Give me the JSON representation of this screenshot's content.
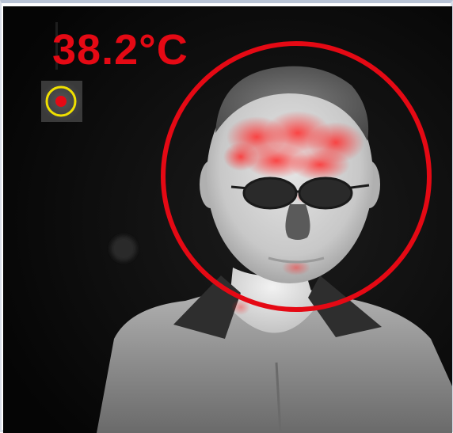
{
  "readout": {
    "temperature": "38.2°C"
  },
  "colors": {
    "alarm": "#e50914",
    "marker_ring": "#f0e000",
    "background": "#0c0c0c"
  },
  "icons": {
    "spot_marker": "spot-marker-icon",
    "detection_ring": "face-detection-ring"
  }
}
